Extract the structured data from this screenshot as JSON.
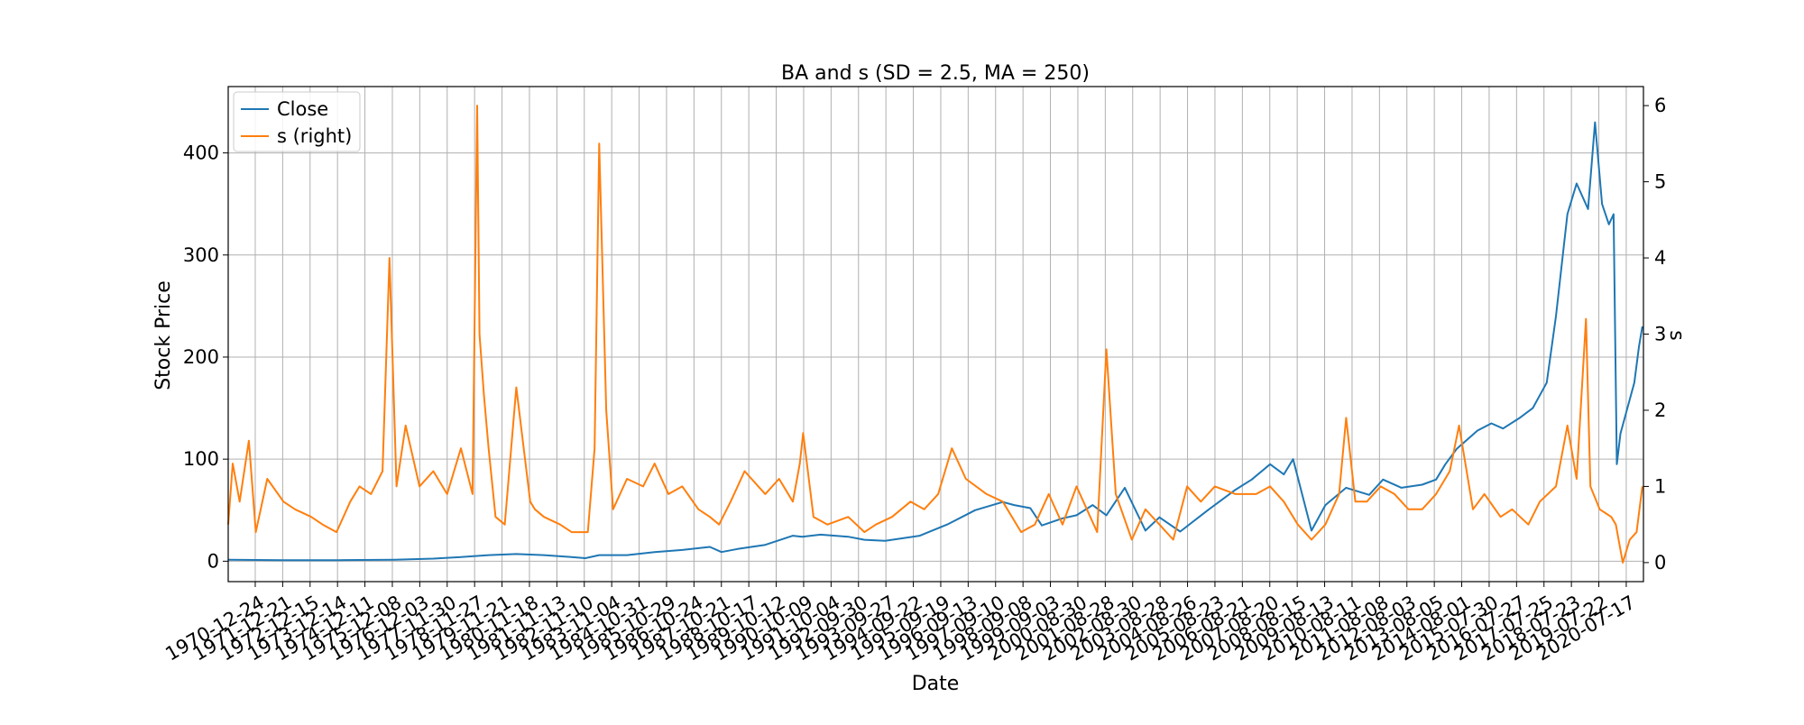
{
  "chart_data": {
    "type": "line",
    "title": "BA and s (SD = 2.5, MA = 250)",
    "xlabel": "Date",
    "ylabel": "Stock Price",
    "ylabel_right": "s",
    "xlim": [
      "1970-01-01",
      "2021-03-01"
    ],
    "ylim": [
      -20,
      465
    ],
    "ylim_right": [
      -0.25,
      6.25
    ],
    "yticks": [
      0,
      100,
      200,
      300,
      400
    ],
    "yticks_right": [
      0,
      1,
      2,
      3,
      4,
      5,
      6
    ],
    "grid": true,
    "legend_position": "top-left",
    "x_tick_labels": [
      "1970-12-24",
      "1971-12-21",
      "1972-12-15",
      "1973-12-14",
      "1974-12-11",
      "1975-12-08",
      "1976-12-03",
      "1977-11-30",
      "1978-11-27",
      "1979-11-21",
      "1980-11-18",
      "1981-11-13",
      "1982-11-10",
      "1983-11-04",
      "1984-10-31",
      "1985-10-29",
      "1986-10-24",
      "1987-10-21",
      "1988-10-17",
      "1989-10-12",
      "1990-10-09",
      "1991-10-04",
      "1992-09-30",
      "1993-09-27",
      "1994-09-22",
      "1995-09-19",
      "1996-09-13",
      "1997-09-10",
      "1998-09-08",
      "1999-09-03",
      "2000-08-30",
      "2001-08-28",
      "2002-08-30",
      "2003-08-28",
      "2004-08-26",
      "2005-08-23",
      "2006-08-21",
      "2007-08-20",
      "2008-08-15",
      "2009-08-13",
      "2010-08-11",
      "2011-08-08",
      "2012-08-03",
      "2013-08-05",
      "2014-08-01",
      "2015-07-30",
      "2016-07-27",
      "2017-07-25",
      "2018-07-23",
      "2019-07-22",
      "2020-07-17"
    ],
    "series": [
      {
        "name": "Close",
        "color": "#1f77b4",
        "axis": "left",
        "x": [
          "1970-01-01",
          "1972-01-01",
          "1974-01-01",
          "1976-01-01",
          "1977-06-01",
          "1978-06-01",
          "1979-06-01",
          "1980-06-01",
          "1981-06-01",
          "1982-06-01",
          "1982-12-01",
          "1983-06-01",
          "1984-06-01",
          "1985-06-01",
          "1986-06-01",
          "1987-06-01",
          "1987-11-01",
          "1988-06-01",
          "1989-06-01",
          "1990-06-01",
          "1990-10-01",
          "1991-06-01",
          "1992-06-01",
          "1993-01-01",
          "1993-10-01",
          "1995-01-01",
          "1996-01-01",
          "1997-01-01",
          "1998-01-01",
          "1998-06-01",
          "1999-01-01",
          "1999-06-01",
          "2000-03-01",
          "2000-09-01",
          "2001-04-01",
          "2001-10-01",
          "2002-06-01",
          "2003-03-01",
          "2003-09-01",
          "2004-06-01",
          "2005-06-01",
          "2006-06-01",
          "2007-01-01",
          "2007-09-01",
          "2008-03-01",
          "2008-07-01",
          "2009-03-01",
          "2009-09-01",
          "2010-06-01",
          "2011-04-01",
          "2011-10-01",
          "2012-06-01",
          "2013-03-01",
          "2013-09-01",
          "2014-01-01",
          "2014-06-01",
          "2015-03-01",
          "2015-09-01",
          "2016-02-01",
          "2016-09-01",
          "2017-03-01",
          "2017-09-01",
          "2018-01-01",
          "2018-06-01",
          "2018-10-01",
          "2019-03-01",
          "2019-06-01",
          "2019-09-01",
          "2019-12-01",
          "2020-02-01",
          "2020-03-15",
          "2020-05-01",
          "2020-08-01",
          "2020-11-01",
          "2021-01-01",
          "2021-02-15"
        ],
        "values": [
          1.5,
          1,
          1,
          1.5,
          2.5,
          4,
          6,
          7,
          6,
          4,
          3,
          6,
          6,
          9,
          11,
          14,
          9,
          12,
          16,
          25,
          24,
          26,
          24,
          21,
          20,
          25,
          36,
          50,
          58,
          55,
          52,
          35,
          42,
          45,
          55,
          45,
          72,
          30,
          43,
          29,
          50,
          70,
          80,
          95,
          85,
          100,
          30,
          55,
          72,
          65,
          80,
          72,
          75,
          80,
          95,
          110,
          128,
          135,
          130,
          140,
          150,
          175,
          240,
          340,
          370,
          345,
          430,
          350,
          330,
          340,
          95,
          125,
          150,
          175,
          210,
          230
        ]
      },
      {
        "name": "s (right)",
        "color": "#ff7f0e",
        "axis": "right",
        "x": [
          "1970-01-01",
          "1970-03-01",
          "1970-06-01",
          "1970-10-01",
          "1971-01-01",
          "1971-06-01",
          "1972-01-01",
          "1972-06-01",
          "1973-01-01",
          "1973-06-01",
          "1973-12-01",
          "1974-06-01",
          "1974-10-01",
          "1975-03-01",
          "1975-08-01",
          "1975-11-01",
          "1976-02-01",
          "1976-06-01",
          "1976-12-01",
          "1977-06-01",
          "1977-12-01",
          "1978-06-01",
          "1978-11-01",
          "1979-01-01",
          "1979-02-01",
          "1979-04-01",
          "1979-06-01",
          "1979-09-01",
          "1980-01-01",
          "1980-06-01",
          "1980-12-01",
          "1981-02-01",
          "1981-06-01",
          "1982-01-01",
          "1982-06-01",
          "1983-01-01",
          "1983-04-01",
          "1983-06-01",
          "1983-09-01",
          "1983-12-01",
          "1984-06-01",
          "1985-01-01",
          "1985-06-01",
          "1985-12-01",
          "1986-06-01",
          "1987-01-01",
          "1987-06-01",
          "1987-10-01",
          "1988-03-01",
          "1988-09-01",
          "1989-03-01",
          "1989-06-01",
          "1989-12-01",
          "1990-06-01",
          "1990-09-01",
          "1990-10-15",
          "1991-03-01",
          "1991-09-01",
          "1992-06-01",
          "1993-01-01",
          "1993-06-01",
          "1994-01-01",
          "1994-09-01",
          "1995-03-01",
          "1995-09-01",
          "1996-03-01",
          "1996-09-01",
          "1997-06-01",
          "1998-01-01",
          "1998-09-01",
          "1999-03-01",
          "1999-09-01",
          "2000-03-01",
          "2000-09-01",
          "2001-03-01",
          "2001-06-01",
          "2001-10-01",
          "2002-02-01",
          "2002-09-01",
          "2003-03-01",
          "2003-09-01",
          "2004-03-01",
          "2004-09-01",
          "2005-03-01",
          "2005-09-01",
          "2006-06-01",
          "2007-03-01",
          "2007-09-01",
          "2008-03-01",
          "2008-09-01",
          "2009-03-01",
          "2009-09-01",
          "2010-03-01",
          "2010-06-01",
          "2010-10-01",
          "2011-03-01",
          "2011-09-01",
          "2012-03-01",
          "2012-09-01",
          "2013-03-01",
          "2013-09-01",
          "2014-03-01",
          "2014-07-01",
          "2015-01-01",
          "2015-06-01",
          "2016-01-01",
          "2016-06-01",
          "2017-01-01",
          "2017-06-01",
          "2018-01-01",
          "2018-06-01",
          "2018-10-01",
          "2019-02-01",
          "2019-04-01",
          "2019-08-01",
          "2020-01-01",
          "2020-03-01",
          "2020-06-01",
          "2020-09-01",
          "2020-12-01",
          "2021-02-15"
        ],
        "values": [
          0.5,
          1.3,
          0.8,
          1.6,
          0.4,
          1.1,
          0.8,
          0.7,
          0.6,
          0.5,
          0.4,
          0.8,
          1.0,
          0.9,
          1.2,
          4.0,
          1.0,
          1.8,
          1.0,
          1.2,
          0.9,
          1.5,
          0.9,
          6.0,
          3.0,
          2.2,
          1.5,
          0.6,
          0.5,
          2.3,
          0.8,
          0.7,
          0.6,
          0.5,
          0.4,
          0.4,
          1.5,
          5.5,
          2.0,
          0.7,
          1.1,
          1.0,
          1.3,
          0.9,
          1.0,
          0.7,
          0.6,
          0.5,
          0.8,
          1.2,
          1.0,
          0.9,
          1.1,
          0.8,
          1.3,
          1.7,
          0.6,
          0.5,
          0.6,
          0.4,
          0.5,
          0.6,
          0.8,
          0.7,
          0.9,
          1.5,
          1.1,
          0.9,
          0.8,
          0.4,
          0.5,
          0.9,
          0.5,
          1.0,
          0.6,
          0.4,
          2.8,
          0.9,
          0.3,
          0.7,
          0.5,
          0.3,
          1.0,
          0.8,
          1.0,
          0.9,
          0.9,
          1.0,
          0.8,
          0.5,
          0.3,
          0.5,
          0.9,
          1.9,
          0.8,
          0.8,
          1.0,
          0.9,
          0.7,
          0.7,
          0.9,
          1.2,
          1.8,
          0.7,
          0.9,
          0.6,
          0.7,
          0.5,
          0.8,
          1.0,
          1.8,
          1.1,
          3.2,
          1.0,
          0.7,
          0.6,
          0.5,
          0.0,
          0.3,
          0.4,
          1.0
        ]
      }
    ]
  }
}
